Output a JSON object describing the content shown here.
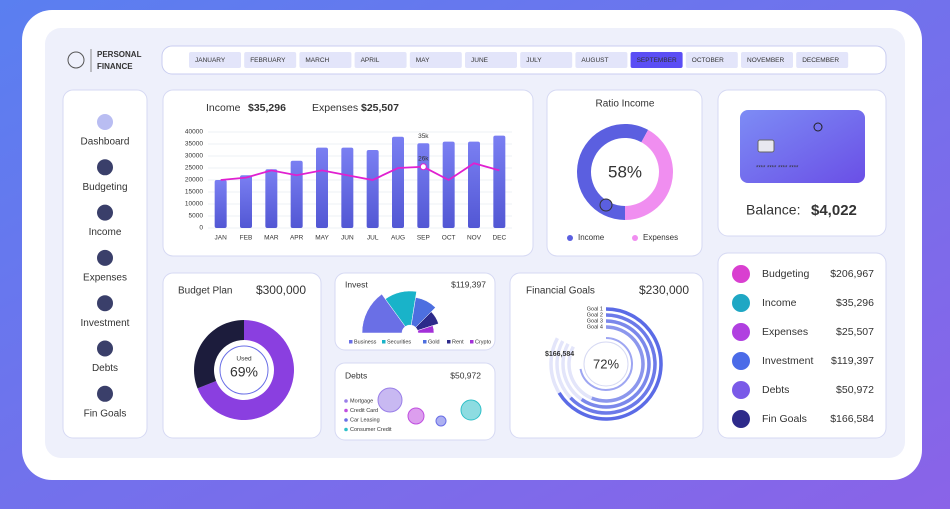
{
  "header": {
    "logo": [
      "PERSONAL",
      "FINANCE"
    ],
    "months": [
      "JANUARY",
      "FEBRUARY",
      "MARCH",
      "APRIL",
      "MAY",
      "JUNE",
      "JULY",
      "AUGUST",
      "SEPTEMBER",
      "OCTOBER",
      "NOVEMBER",
      "DECEMBER"
    ],
    "selected_month": 8
  },
  "sidebar": [
    "Dashboard",
    "Budgeting",
    "Income",
    "Expenses",
    "Investment",
    "Debts",
    "Fin Goals"
  ],
  "card": {
    "number": "**** **** **** ****",
    "balance_label": "Balance:",
    "balance": "$4,022"
  },
  "summary": [
    {
      "label": "Budgeting",
      "value": "$206,967",
      "color": "#d93fd0"
    },
    {
      "label": "Income",
      "value": "$35,296",
      "color": "#1fa7c4"
    },
    {
      "label": "Expenses",
      "value": "$25,507",
      "color": "#b040e0"
    },
    {
      "label": "Investment",
      "value": "$119,397",
      "color": "#4b6be8"
    },
    {
      "label": "Debts",
      "value": "$50,972",
      "color": "#7a5ae8"
    },
    {
      "label": "Fin Goals",
      "value": "$166,584",
      "color": "#2d2a8a"
    }
  ],
  "chart_data": [
    {
      "type": "bar",
      "categories": [
        "JAN",
        "FEB",
        "MAR",
        "APR",
        "MAY",
        "JUN",
        "JUL",
        "AUG",
        "SEP",
        "OCT",
        "NOV",
        "DEC"
      ],
      "series": [
        {
          "name": "Income",
          "total": "$35,296",
          "color": "#6a6fe6",
          "values": [
            20000,
            22000,
            24500,
            28000,
            33500,
            33500,
            32500,
            38000,
            35296,
            36000,
            36000,
            38500
          ],
          "value_labels": [
            null,
            null,
            null,
            null,
            null,
            null,
            null,
            null,
            "35k",
            null,
            null,
            null
          ]
        },
        {
          "name": "Expenses",
          "total": "$25,507",
          "color": "#e020d0",
          "values": [
            20000,
            21000,
            24000,
            22000,
            24000,
            22000,
            20000,
            25000,
            25507,
            20000,
            27000,
            24000
          ],
          "value_labels": [
            null,
            null,
            null,
            null,
            null,
            null,
            null,
            null,
            "26k",
            null,
            null,
            null
          ]
        }
      ],
      "ylim": [
        0,
        40000
      ],
      "yticks": [
        0,
        5000,
        10000,
        15000,
        20000,
        25000,
        30000,
        35000,
        40000
      ]
    },
    {
      "type": "donut",
      "title": "Ratio Income",
      "categories": [
        "Income",
        "Expenses"
      ],
      "values": [
        58,
        42
      ],
      "value_labels": [
        "58%",
        null
      ],
      "colors": [
        "#5b5fe0",
        "#f08ef0"
      ]
    },
    {
      "type": "donut",
      "title": "Budget Plan",
      "total": "$300,000",
      "center_label": "Used",
      "values": [
        69,
        31
      ],
      "value_labels": [
        "69%",
        null
      ],
      "colors": [
        "#8a3fe0",
        "#1c1c3c"
      ]
    },
    {
      "type": "semi-donut",
      "title": "Invest",
      "total": "$119,397",
      "categories": [
        "Business",
        "Securities",
        "Gold",
        "Rent",
        "Crypto"
      ],
      "values": [
        30,
        25,
        20,
        15,
        10
      ],
      "colors": [
        "#6a6fe6",
        "#19b3c9",
        "#4d6fe0",
        "#2d2a8a",
        "#a330d8"
      ]
    },
    {
      "type": "bubble",
      "title": "Debts",
      "total": "$50,972",
      "categories": [
        "Mortgage",
        "Credit Card",
        "Car Leasing",
        "Consumer Credit"
      ],
      "values": [
        24,
        16,
        10,
        20
      ],
      "colors": [
        "#9a7fe8",
        "#c04fe0",
        "#6a6fe6",
        "#2fc0c8"
      ]
    },
    {
      "type": "radial-bar",
      "title": "Financial Goals",
      "total": "$230,000",
      "categories": [
        "Goal 1",
        "Goal 2",
        "Goal 3",
        "Goal 4"
      ],
      "values": [
        80,
        76,
        72,
        68
      ],
      "annotation": "$166,584",
      "center_value": 72,
      "center_value_label": "72%",
      "color": "#5b6be6"
    }
  ]
}
